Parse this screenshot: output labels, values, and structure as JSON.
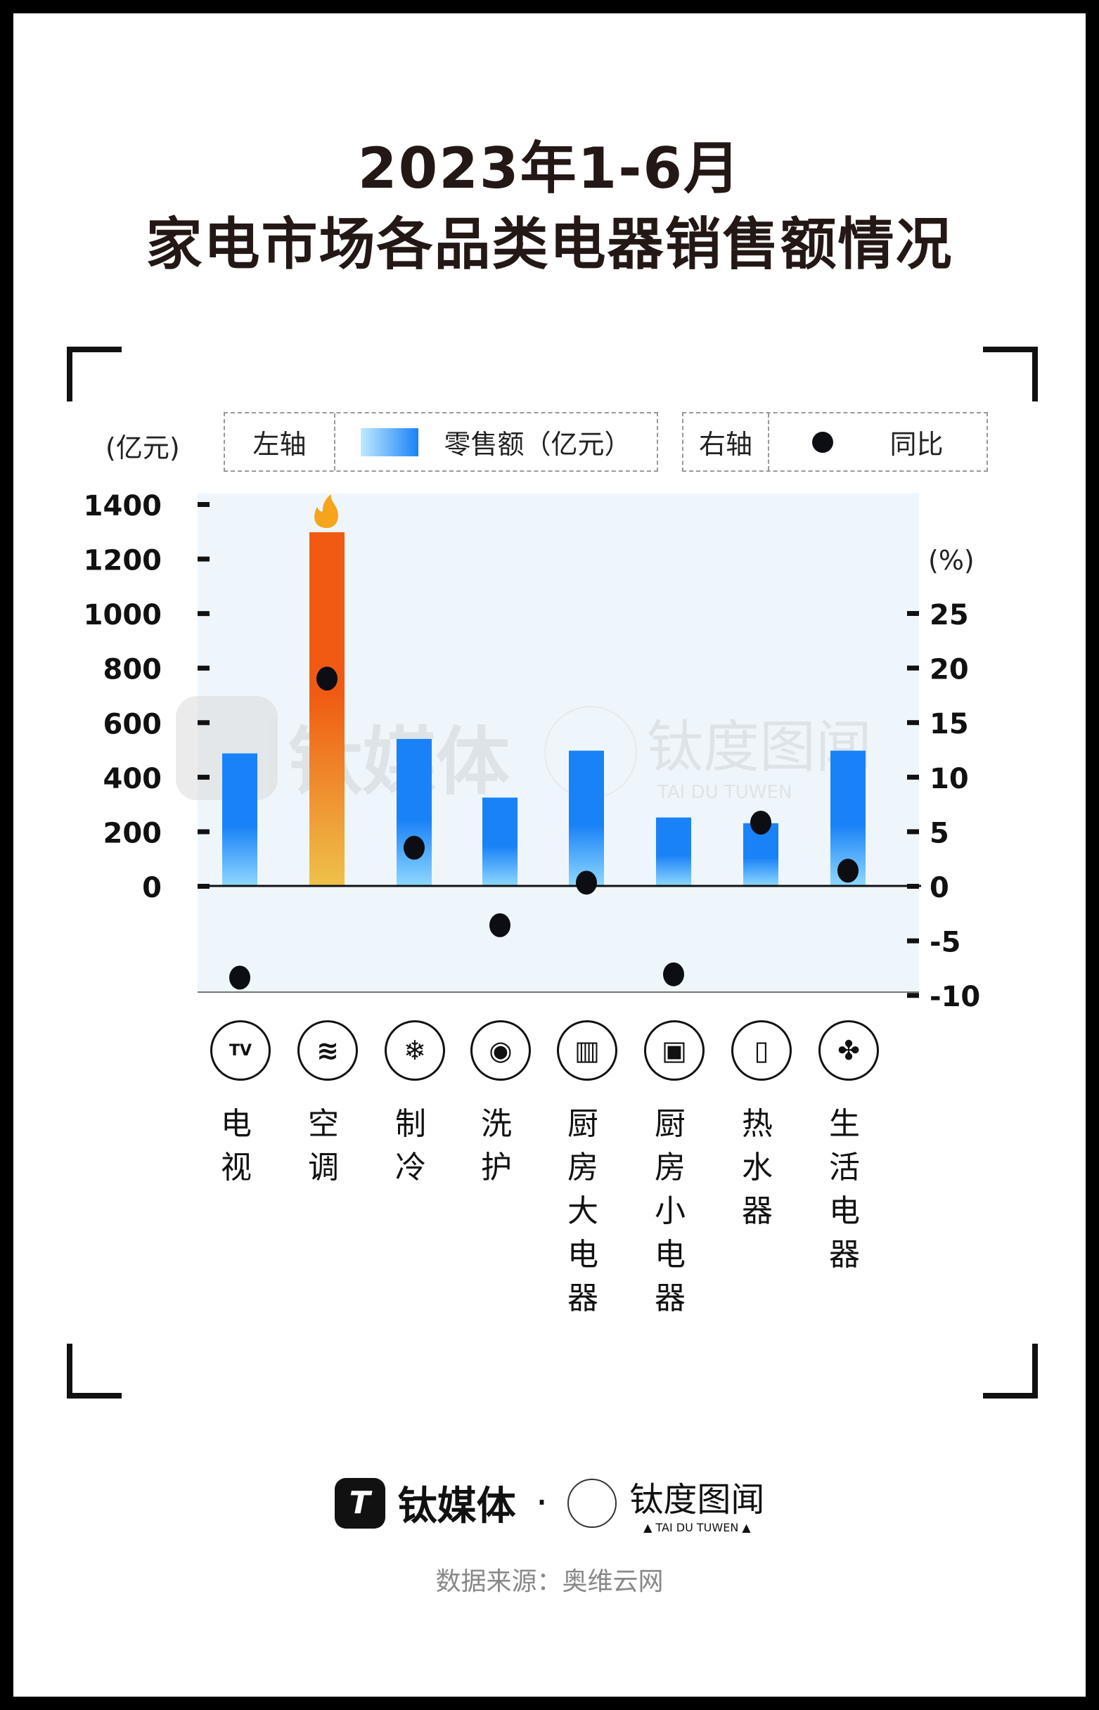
{
  "title_line1": "2023年1-6月",
  "title_line2": "家电市场各品类电器销售额情况",
  "legend": {
    "left_axis_label": "左轴",
    "bar_series_label": "零售额（亿元）",
    "right_axis_label": "右轴",
    "dot_series_label": "同比"
  },
  "footer": {
    "brand1": "钛媒体",
    "dot": "·",
    "brand2": "钛度图闻",
    "brand2_sub": "▲ TAI DU TUWEN ▲",
    "source": "数据来源：奥维云网"
  },
  "watermark": {
    "brand1": "钛媒体",
    "brand2": "钛度图闻",
    "brand2_sub": "TAI DU TUWEN"
  },
  "colors": {
    "bar_top": "#1a82f7",
    "bar_bottom": "#8fd8ff",
    "highlight_top": "#f05a12",
    "highlight_bottom": "#eec24a",
    "dot": "#0d0d14",
    "plot_bg": "#eef6fc"
  },
  "chart_data": {
    "type": "bar+scatter",
    "categories": [
      "电视",
      "空调",
      "制冷",
      "洗护",
      "厨房大电器",
      "厨房小电器",
      "热水器",
      "生活电器"
    ],
    "category_icons": [
      "tv-icon",
      "air-conditioner-icon",
      "snowflake-icon",
      "washing-machine-icon",
      "kitchen-appliance-icon",
      "microwave-icon",
      "water-heater-icon",
      "fan-icon"
    ],
    "series": [
      {
        "name": "零售额（亿元）",
        "axis": "left",
        "type": "bar",
        "values": [
          486,
          1297,
          539,
          324,
          496,
          251,
          230,
          496
        ]
      },
      {
        "name": "同比",
        "axis": "right",
        "type": "scatter",
        "values": [
          -8.4,
          19.0,
          3.5,
          -3.6,
          0.3,
          -8.1,
          5.8,
          1.4
        ]
      }
    ],
    "highlight_category": "空调",
    "highlight_icon": "fire-icon",
    "left_axis": {
      "label": "(亿元)",
      "ticks": [
        0,
        200,
        400,
        600,
        800,
        1000,
        1200,
        1400
      ],
      "range": [
        -400,
        1400
      ]
    },
    "right_axis": {
      "label": "(%)",
      "ticks": [
        -10,
        -5,
        0,
        5,
        10,
        15,
        20,
        25
      ],
      "range": [
        -10,
        35
      ]
    },
    "grid": false,
    "legend_position": "top"
  }
}
